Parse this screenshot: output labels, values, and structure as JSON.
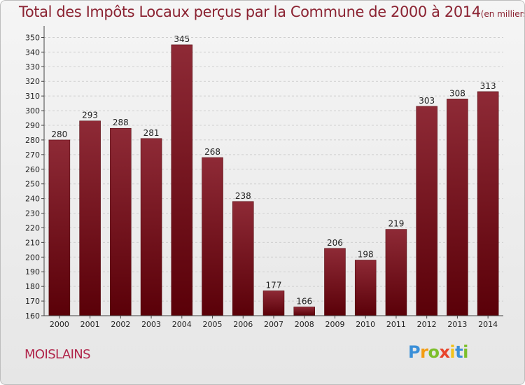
{
  "chart_data": {
    "type": "bar",
    "title": "Total des Impôts Locaux perçus par la Commune de 2000 à 2014",
    "subtitle": "(en milliers d'€)",
    "categories": [
      "2000",
      "2001",
      "2002",
      "2003",
      "2004",
      "2005",
      "2006",
      "2007",
      "2008",
      "2009",
      "2010",
      "2011",
      "2012",
      "2013",
      "2014"
    ],
    "values": [
      280,
      293,
      288,
      281,
      345,
      268,
      238,
      177,
      166,
      206,
      198,
      219,
      303,
      308,
      313
    ],
    "ylim": [
      160,
      350
    ],
    "ytick_step": 10,
    "grid": true,
    "bar_color": "#6e0f1b"
  },
  "commune": "MOISLAINS",
  "brand": {
    "letters": [
      "P",
      "r",
      "o",
      "x",
      "i",
      "t",
      "i"
    ],
    "colors": [
      "#3a8fd8",
      "#f39c12",
      "#7cbf2a",
      "#e8452c",
      "#f2c21a",
      "#3a8fd8",
      "#7cbf2a"
    ]
  }
}
